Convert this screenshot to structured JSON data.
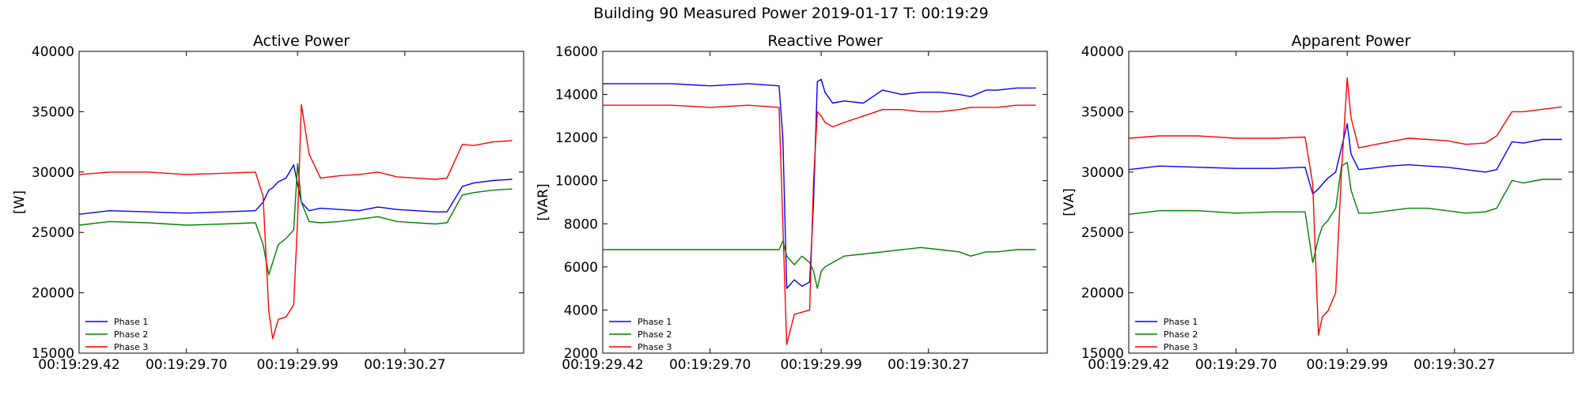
{
  "suptitle": "Building 90 Measured Power 2019-01-17 T: 00:19:29",
  "colors": {
    "phase1": "#0000ff",
    "phase2": "#008000",
    "phase3": "#ff0000"
  },
  "chart_data": [
    {
      "type": "line",
      "title": "Active Power",
      "ylabel": "[W]",
      "xlabel": "",
      "ylim": [
        15000,
        40000
      ],
      "yticks": [
        15000,
        20000,
        25000,
        30000,
        35000,
        40000
      ],
      "xlim": [
        29.42,
        30.58
      ],
      "xticks": [
        "00:19:29.42",
        "00:19:29.70",
        "00:19:29.99",
        "00:19:30.27"
      ],
      "grid": false,
      "legend": "lower-left",
      "x": [
        29.42,
        29.5,
        29.6,
        29.7,
        29.8,
        29.88,
        29.9,
        29.915,
        29.925,
        29.94,
        29.96,
        29.98,
        29.99,
        30.0,
        30.02,
        30.05,
        30.1,
        30.15,
        30.2,
        30.25,
        30.3,
        30.35,
        30.38,
        30.42,
        30.45,
        30.5,
        30.55
      ],
      "series": [
        {
          "name": "Phase 1",
          "color": "#0000ff",
          "values": [
            26500,
            26800,
            26700,
            26600,
            26700,
            26800,
            27500,
            28500,
            28700,
            29200,
            29500,
            30600,
            29000,
            27500,
            26800,
            27000,
            26900,
            26800,
            27100,
            26900,
            26800,
            26700,
            26700,
            28800,
            29100,
            29300,
            29400
          ]
        },
        {
          "name": "Phase 2",
          "color": "#008000",
          "values": [
            25600,
            25900,
            25800,
            25600,
            25700,
            25800,
            24000,
            21500,
            22500,
            24000,
            24500,
            25200,
            30700,
            27500,
            25900,
            25800,
            25900,
            26100,
            26300,
            25900,
            25800,
            25700,
            25800,
            28100,
            28300,
            28500,
            28600
          ]
        },
        {
          "name": "Phase 3",
          "color": "#ff0000",
          "values": [
            29800,
            30000,
            30000,
            29800,
            29900,
            30000,
            28000,
            18500,
            16200,
            17800,
            18000,
            19000,
            26000,
            35600,
            31500,
            29500,
            29700,
            29800,
            30000,
            29600,
            29500,
            29400,
            29500,
            32300,
            32200,
            32500,
            32600
          ]
        }
      ]
    },
    {
      "type": "line",
      "title": "Reactive Power",
      "ylabel": "[VAR]",
      "xlabel": "",
      "ylim": [
        2000,
        16000
      ],
      "yticks": [
        2000,
        4000,
        6000,
        8000,
        10000,
        12000,
        14000,
        16000
      ],
      "xlim": [
        29.42,
        30.58
      ],
      "xticks": [
        "00:19:29.42",
        "00:19:29.70",
        "00:19:29.99",
        "00:19:30.27"
      ],
      "grid": false,
      "legend": "lower-left",
      "x": [
        29.42,
        29.5,
        29.6,
        29.7,
        29.8,
        29.88,
        29.89,
        29.9,
        29.92,
        29.94,
        29.96,
        29.97,
        29.98,
        29.99,
        30.0,
        30.02,
        30.05,
        30.1,
        30.15,
        30.2,
        30.25,
        30.3,
        30.35,
        30.38,
        30.42,
        30.45,
        30.5,
        30.55
      ],
      "series": [
        {
          "name": "Phase 1",
          "color": "#0000ff",
          "values": [
            14500,
            14500,
            14500,
            14400,
            14500,
            14400,
            12000,
            5000,
            5400,
            5100,
            5300,
            9000,
            14600,
            14700,
            14100,
            13600,
            13700,
            13600,
            14200,
            14000,
            14100,
            14100,
            14000,
            13900,
            14200,
            14200,
            14300,
            14300
          ]
        },
        {
          "name": "Phase 2",
          "color": "#008000",
          "values": [
            6800,
            6800,
            6800,
            6800,
            6800,
            6800,
            7200,
            6500,
            6100,
            6500,
            6200,
            5800,
            5000,
            5800,
            6000,
            6200,
            6500,
            6600,
            6700,
            6800,
            6900,
            6800,
            6700,
            6500,
            6700,
            6700,
            6800,
            6800
          ]
        },
        {
          "name": "Phase 3",
          "color": "#ff0000",
          "values": [
            13500,
            13500,
            13500,
            13400,
            13500,
            13400,
            8000,
            2400,
            3800,
            3900,
            4000,
            10000,
            13200,
            13000,
            12700,
            12500,
            12700,
            13000,
            13300,
            13300,
            13200,
            13200,
            13300,
            13400,
            13400,
            13400,
            13500,
            13500
          ]
        }
      ]
    },
    {
      "type": "line",
      "title": "Apparent Power",
      "ylabel": "[VA]",
      "xlabel": "",
      "ylim": [
        15000,
        40000
      ],
      "yticks": [
        15000,
        20000,
        25000,
        30000,
        35000,
        40000
      ],
      "xlim": [
        29.42,
        30.58
      ],
      "xticks": [
        "00:19:29.42",
        "00:19:29.70",
        "00:19:29.99",
        "00:19:30.27"
      ],
      "grid": false,
      "legend": "lower-left",
      "x": [
        29.42,
        29.5,
        29.6,
        29.7,
        29.8,
        29.88,
        29.9,
        29.915,
        29.925,
        29.94,
        29.96,
        29.975,
        29.99,
        30.0,
        30.02,
        30.05,
        30.1,
        30.15,
        30.2,
        30.25,
        30.3,
        30.35,
        30.38,
        30.42,
        30.45,
        30.5,
        30.55
      ],
      "series": [
        {
          "name": "Phase 1",
          "color": "#0000ff",
          "values": [
            30200,
            30500,
            30400,
            30300,
            30300,
            30400,
            28200,
            28600,
            29000,
            29500,
            30000,
            32000,
            34000,
            31500,
            30200,
            30300,
            30500,
            30600,
            30500,
            30400,
            30200,
            30000,
            30200,
            32500,
            32400,
            32700,
            32700
          ]
        },
        {
          "name": "Phase 2",
          "color": "#008000",
          "values": [
            26500,
            26800,
            26800,
            26600,
            26700,
            26700,
            22500,
            24500,
            25500,
            26000,
            27000,
            30500,
            30800,
            28500,
            26600,
            26600,
            26800,
            27000,
            27000,
            26800,
            26600,
            26700,
            27000,
            29300,
            29100,
            29400,
            29400
          ]
        },
        {
          "name": "Phase 3",
          "color": "#ff0000",
          "values": [
            32800,
            33000,
            33000,
            32800,
            32800,
            32900,
            29000,
            16500,
            18000,
            18500,
            20000,
            30000,
            37800,
            34500,
            32000,
            32200,
            32500,
            32800,
            32700,
            32600,
            32300,
            32400,
            33000,
            35000,
            35000,
            35200,
            35400
          ]
        }
      ]
    }
  ]
}
